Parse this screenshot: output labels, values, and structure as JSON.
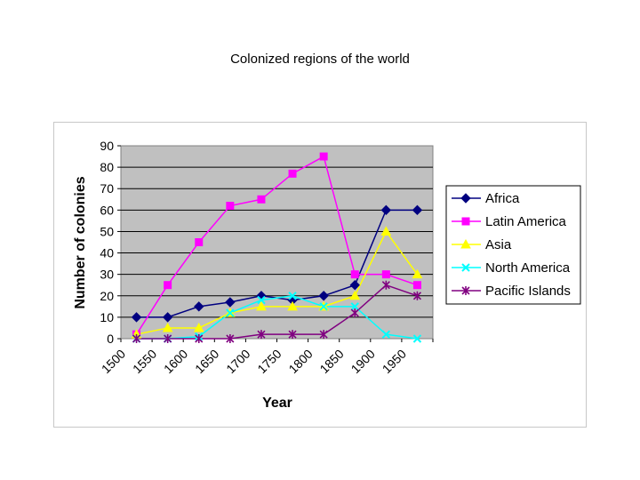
{
  "page": {
    "title": "Colonized regions of the world"
  },
  "chart_data": {
    "type": "line",
    "title": "",
    "xlabel": "Year",
    "ylabel": "Number of colonies",
    "x_ticks": [
      "1500",
      "1550",
      "1600",
      "1650",
      "1700",
      "1750",
      "1800",
      "1850",
      "1900",
      "1950"
    ],
    "ylim": [
      0,
      90
    ],
    "y_ticks": [
      "0",
      "10",
      "20",
      "30",
      "40",
      "50",
      "60",
      "70",
      "80",
      "90"
    ],
    "plot_background": "#c0c0c0",
    "grid": "horizontal",
    "legend_position": "right",
    "series": [
      {
        "name": "Africa",
        "color": "#000080",
        "marker": "diamond",
        "values": [
          10,
          10,
          15,
          17,
          20,
          18,
          20,
          25,
          60,
          60
        ]
      },
      {
        "name": "Latin America",
        "color": "#ff00ff",
        "marker": "square",
        "values": [
          2,
          25,
          45,
          62,
          65,
          77,
          85,
          30,
          30,
          25
        ]
      },
      {
        "name": "Asia",
        "color": "#ffff00",
        "marker": "triangle",
        "values": [
          2,
          5,
          5,
          12,
          15,
          15,
          15,
          20,
          50,
          30
        ]
      },
      {
        "name": "North America",
        "color": "#00ffff",
        "marker": "x",
        "values": [
          0,
          0,
          1,
          12,
          18,
          20,
          15,
          15,
          2,
          0
        ]
      },
      {
        "name": "Pacific Islands",
        "color": "#800080",
        "marker": "star",
        "values": [
          0,
          0,
          0,
          0,
          2,
          2,
          2,
          12,
          25,
          20
        ]
      }
    ]
  }
}
